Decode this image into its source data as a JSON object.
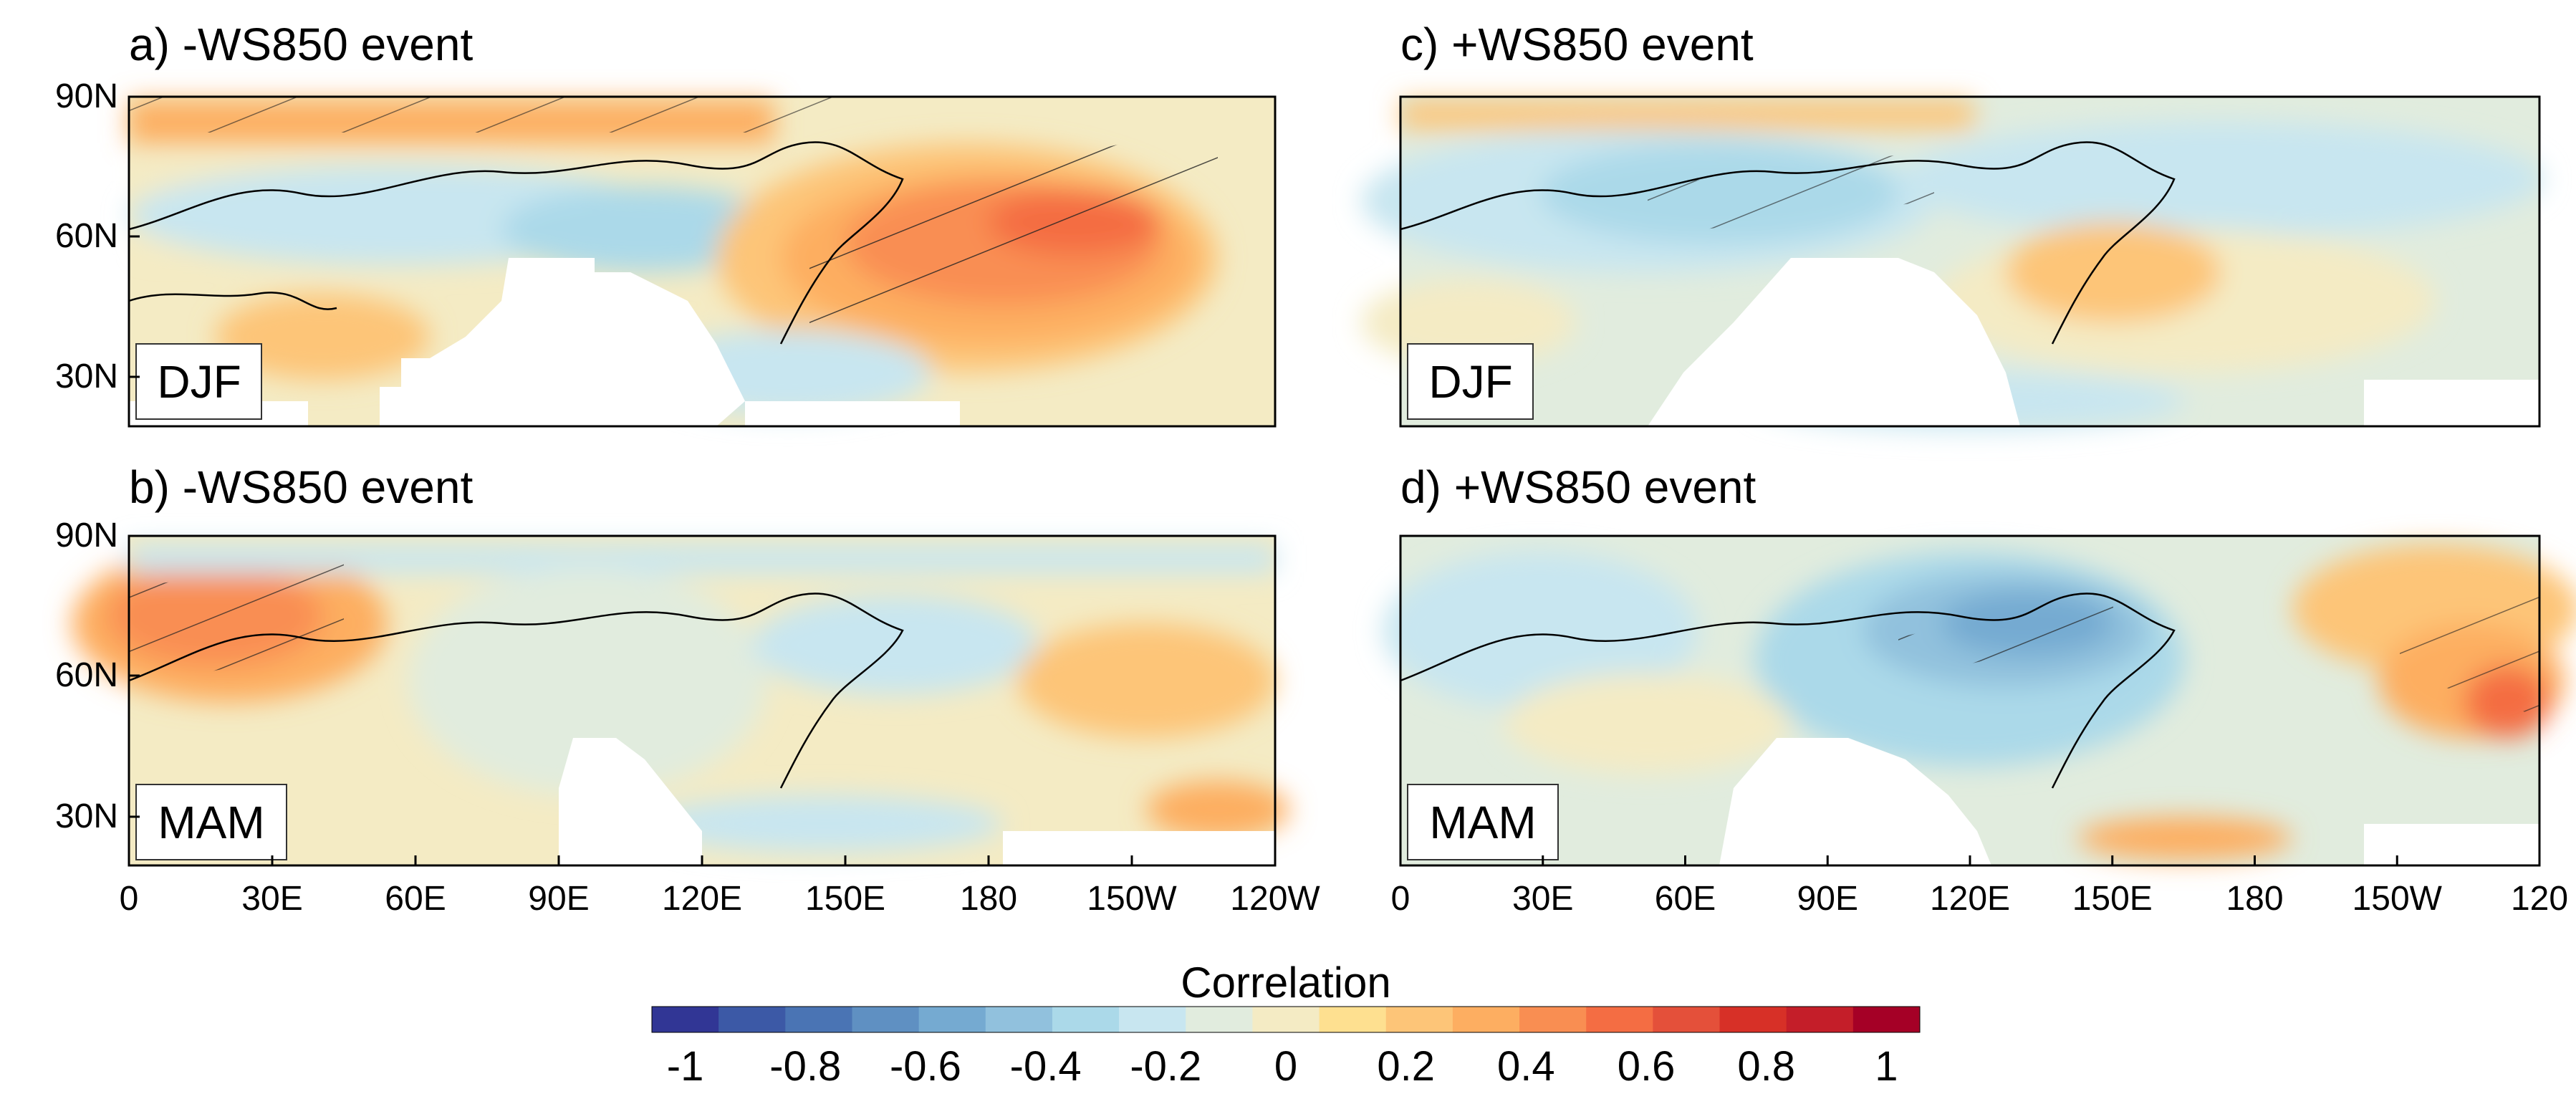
{
  "chart_data": {
    "type": "heatmap",
    "colorbar": {
      "title": "Correlation",
      "range": [
        -1,
        1
      ],
      "tick_labels": [
        "-1",
        "-0.8",
        "-0.6",
        "-0.4",
        "-0.2",
        "0",
        "0.2",
        "0.4",
        "0.6",
        "0.8",
        "1"
      ],
      "colors": [
        "#313695",
        "#3c59a6",
        "#4a74b4",
        "#5f90c2",
        "#75aad1",
        "#91c1dd",
        "#abd9e9",
        "#c8e6f0",
        "#e1ecde",
        "#f4ebc4",
        "#fee090",
        "#fdc578",
        "#fdae61",
        "#f98e52",
        "#f46d43",
        "#e4503a",
        "#d73027",
        "#c41e29",
        "#a50026"
      ]
    },
    "x_ticks": [
      "0",
      "30E",
      "60E",
      "90E",
      "120E",
      "150E",
      "180",
      "150W",
      "120W"
    ],
    "x_ticks_right": [
      "0",
      "30E",
      "60E",
      "90E",
      "120E",
      "150E",
      "180",
      "150W",
      "120"
    ],
    "y_ticks": [
      "90N",
      "60N",
      "30N"
    ],
    "panels": [
      {
        "id": "a",
        "title": "a) -WS850 event",
        "season": "DJF",
        "max_center": "150E-160W, 35-70N",
        "max_value": 0.6
      },
      {
        "id": "b",
        "title": "b) -WS850 event",
        "season": "MAM",
        "max_center": "0-40E, 60-75N",
        "max_value": 0.4
      },
      {
        "id": "c",
        "title": "c) +WS850 event",
        "season": "DJF",
        "max_center": "30-70E, 60-75N",
        "max_value": -0.3
      },
      {
        "id": "d",
        "title": "d) +WS850 event",
        "season": "MAM",
        "max_center": "120-150E, 60-75N",
        "max_value": -0.5
      }
    ]
  }
}
